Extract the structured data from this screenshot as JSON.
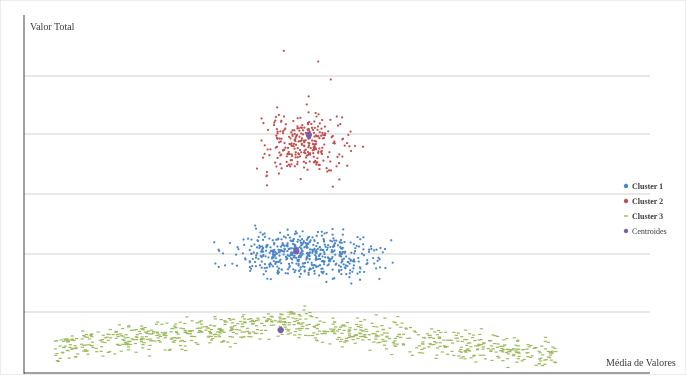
{
  "chart_data": {
    "type": "scatter",
    "ylabel": "Valor Total",
    "xlabel": "Média de Valores",
    "grid": true,
    "legend_position": "right",
    "xlim": [
      0,
      100
    ],
    "ylim": [
      0,
      100
    ],
    "series": [
      {
        "name": "Cluster 1",
        "color": "#4a86c8",
        "marker": "dot",
        "points": []
      },
      {
        "name": "Cluster 2",
        "color": "#c0504d",
        "marker": "dot",
        "points": []
      },
      {
        "name": "Cluster 3",
        "color": "#9bbb59",
        "marker": "dash",
        "points": []
      },
      {
        "name": "Centroides",
        "color": "#7b5ea8",
        "marker": "dot",
        "points": [
          [
            45.5,
            66.5
          ],
          [
            43.5,
            34
          ],
          [
            41,
            12
          ]
        ]
      }
    ]
  }
}
